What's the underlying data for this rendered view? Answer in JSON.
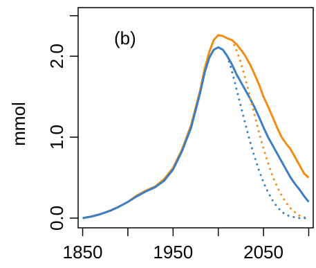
{
  "chart_data": {
    "type": "line",
    "panel_label": "(b)",
    "ylabel": "mmol",
    "xlabel": "",
    "xlim": [
      1845,
      2105
    ],
    "ylim": [
      -0.12,
      2.6
    ],
    "x_ticks": [
      "1850",
      "1950",
      "2050"
    ],
    "x_tick_values": [
      1850,
      1900,
      1950,
      2000,
      2050,
      2100
    ],
    "x_tick_labels": [
      "1850",
      "",
      "1950",
      "",
      "2050",
      ""
    ],
    "y_ticks": [
      0.0,
      1.0,
      2.0
    ],
    "y_tick_labels": [
      "0.0",
      "1.0",
      "2.0"
    ],
    "grid": false,
    "series": [
      {
        "color": "#f28c14",
        "style": "solid",
        "x": [
          1850,
          1860,
          1870,
          1880,
          1890,
          1900,
          1910,
          1920,
          1930,
          1940,
          1950,
          1960,
          1970,
          1980,
          1985,
          1990,
          1995,
          2000,
          2005,
          2010,
          2015,
          2020,
          2025,
          2030,
          2035,
          2040,
          2045,
          2050,
          2055,
          2060,
          2065,
          2070,
          2075,
          2080,
          2085,
          2090,
          2095,
          2100
        ],
        "y": [
          0.0,
          0.02,
          0.05,
          0.09,
          0.14,
          0.2,
          0.28,
          0.34,
          0.39,
          0.48,
          0.62,
          0.85,
          1.15,
          1.58,
          1.85,
          2.05,
          2.2,
          2.26,
          2.25,
          2.22,
          2.2,
          2.15,
          2.08,
          2.0,
          1.9,
          1.78,
          1.65,
          1.5,
          1.38,
          1.25,
          1.12,
          1.0,
          0.92,
          0.85,
          0.75,
          0.65,
          0.55,
          0.5
        ]
      },
      {
        "color": "#3a7fc2",
        "style": "solid",
        "x": [
          1850,
          1860,
          1870,
          1880,
          1890,
          1900,
          1910,
          1920,
          1930,
          1940,
          1950,
          1960,
          1970,
          1980,
          1985,
          1990,
          1995,
          2000,
          2005,
          2010,
          2015,
          2020,
          2025,
          2030,
          2035,
          2040,
          2045,
          2050,
          2055,
          2060,
          2065,
          2070,
          2075,
          2080,
          2085,
          2090,
          2095,
          2100
        ],
        "y": [
          0.0,
          0.02,
          0.05,
          0.09,
          0.14,
          0.2,
          0.27,
          0.33,
          0.38,
          0.46,
          0.6,
          0.83,
          1.12,
          1.55,
          1.8,
          1.98,
          2.08,
          2.11,
          2.08,
          2.0,
          1.9,
          1.78,
          1.68,
          1.58,
          1.48,
          1.37,
          1.25,
          1.12,
          1.0,
          0.9,
          0.8,
          0.7,
          0.6,
          0.5,
          0.42,
          0.35,
          0.27,
          0.2
        ]
      },
      {
        "color": "#f28c14",
        "style": "dotted",
        "x": [
          2015,
          2020,
          2025,
          2030,
          2035,
          2040,
          2045,
          2050,
          2055,
          2060,
          2065,
          2070,
          2075,
          2080,
          2085,
          2090,
          2095,
          2100
        ],
        "y": [
          2.2,
          2.08,
          1.92,
          1.72,
          1.5,
          1.28,
          1.06,
          0.86,
          0.68,
          0.52,
          0.39,
          0.28,
          0.19,
          0.12,
          0.07,
          0.03,
          0.01,
          0.0
        ]
      },
      {
        "color": "#3a7fc2",
        "style": "dotted",
        "x": [
          2010,
          2015,
          2020,
          2025,
          2030,
          2035,
          2040,
          2045,
          2050,
          2055,
          2060,
          2065,
          2070,
          2075,
          2080,
          2085,
          2090,
          2095,
          2100
        ],
        "y": [
          2.0,
          1.82,
          1.6,
          1.38,
          1.16,
          0.95,
          0.76,
          0.59,
          0.44,
          0.32,
          0.22,
          0.14,
          0.08,
          0.04,
          0.02,
          0.01,
          0.0,
          0.0,
          0.0
        ]
      }
    ]
  }
}
